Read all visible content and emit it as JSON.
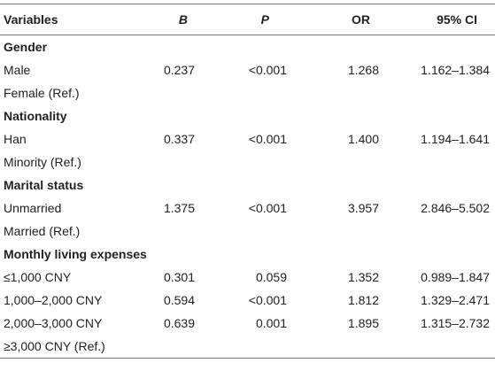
{
  "header": {
    "variables": "Variables",
    "b": "B",
    "p": "P",
    "or": "OR",
    "ci": "95% CI"
  },
  "rows": [
    {
      "type": "section",
      "label": "Gender"
    },
    {
      "type": "data",
      "label": "Male",
      "b": "0.237",
      "p": "<0.001",
      "or": "1.268",
      "ci": "1.162–1.384"
    },
    {
      "type": "data",
      "label": "Female (Ref.)",
      "b": "",
      "p": "",
      "or": "",
      "ci": ""
    },
    {
      "type": "section",
      "label": "Nationality"
    },
    {
      "type": "data",
      "label": "Han",
      "b": "0.337",
      "p": "<0.001",
      "or": "1.400",
      "ci": "1.194–1.641"
    },
    {
      "type": "data",
      "label": "Minority (Ref.)",
      "b": "",
      "p": "",
      "or": "",
      "ci": ""
    },
    {
      "type": "section",
      "label": "Marital status"
    },
    {
      "type": "data",
      "label": "Unmarried",
      "b": "1.375",
      "p": "<0.001",
      "or": "3.957",
      "ci": "2.846–5.502"
    },
    {
      "type": "data",
      "label": "Married (Ref.)",
      "b": "",
      "p": "",
      "or": "",
      "ci": ""
    },
    {
      "type": "section",
      "label": "Monthly living expenses"
    },
    {
      "type": "data",
      "label": "≤1,000 CNY",
      "b": "0.301",
      "p": "0.059",
      "or": "1.352",
      "ci": "0.989–1.847"
    },
    {
      "type": "data",
      "label": "1,000–2,000 CNY",
      "b": "0.594",
      "p": "<0.001",
      "or": "1.812",
      "ci": "1.329–2.471"
    },
    {
      "type": "data",
      "label": "2,000–3,000 CNY",
      "b": "0.639",
      "p": "0.001",
      "or": "1.895",
      "ci": "1.315–2.732"
    },
    {
      "type": "data",
      "label": "≥3,000 CNY (Ref.)",
      "b": "",
      "p": "",
      "or": "",
      "ci": ""
    }
  ]
}
